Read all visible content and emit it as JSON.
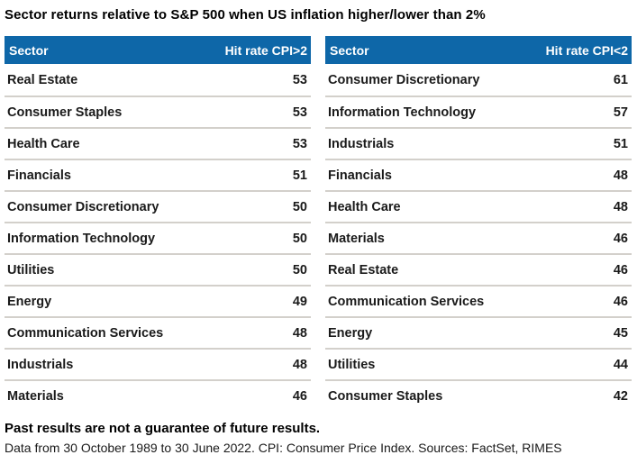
{
  "title": "Sector returns relative to S&P 500 when US inflation higher/lower than 2%",
  "colors": {
    "header_bg": "#0e67a8",
    "header_text": "#ffffff",
    "divider": "#d3d0cb",
    "body_text": "#1a1a1a"
  },
  "chart_data": [
    {
      "type": "table",
      "title": "Sector returns relative to S&P 500 when US inflation higher than 2%",
      "columns": {
        "sector": "Sector",
        "value": "Hit rate CPI>2"
      },
      "rows": [
        {
          "sector": "Real Estate",
          "value": 53
        },
        {
          "sector": "Consumer Staples",
          "value": 53
        },
        {
          "sector": "Health Care",
          "value": 53
        },
        {
          "sector": "Financials",
          "value": 51
        },
        {
          "sector": "Consumer Discretionary",
          "value": 50
        },
        {
          "sector": "Information Technology",
          "value": 50
        },
        {
          "sector": "Utilities",
          "value": 50
        },
        {
          "sector": "Energy",
          "value": 49
        },
        {
          "sector": "Communication Services",
          "value": 48
        },
        {
          "sector": "Industrials",
          "value": 48
        },
        {
          "sector": "Materials",
          "value": 46
        }
      ]
    },
    {
      "type": "table",
      "title": "Sector returns relative to S&P 500 when US inflation lower than 2%",
      "columns": {
        "sector": "Sector",
        "value": "Hit rate CPI<2"
      },
      "rows": [
        {
          "sector": "Consumer Discretionary",
          "value": 61
        },
        {
          "sector": "Information Technology",
          "value": 57
        },
        {
          "sector": "Industrials",
          "value": 51
        },
        {
          "sector": "Financials",
          "value": 48
        },
        {
          "sector": "Health Care",
          "value": 48
        },
        {
          "sector": "Materials",
          "value": 46
        },
        {
          "sector": "Real Estate",
          "value": 46
        },
        {
          "sector": "Communication Services",
          "value": 46
        },
        {
          "sector": "Energy",
          "value": 45
        },
        {
          "sector": "Utilities",
          "value": 44
        },
        {
          "sector": "Consumer Staples",
          "value": 42
        }
      ]
    }
  ],
  "footer": {
    "disclaimer": "Past results are not a guarantee of future results.",
    "source": "Data from 30 October 1989 to 30 June 2022. CPI: Consumer Price Index. Sources: FactSet, RIMES"
  }
}
